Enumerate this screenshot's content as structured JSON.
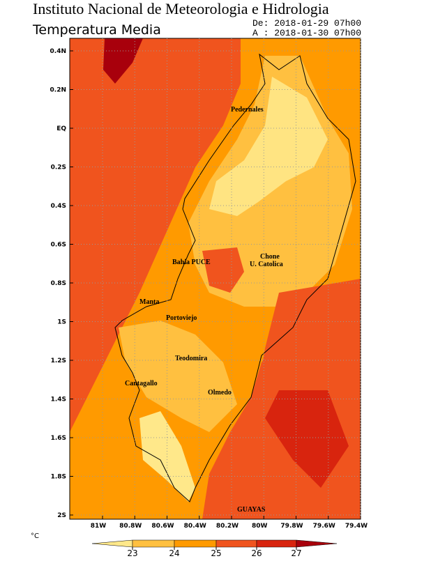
{
  "header": {
    "title": "Instituto Nacional de Meteorologia e Hidrologia",
    "subtitle": "Temperatura Media",
    "date_from": "De: 2018-01-29 07h00",
    "date_to": "A : 2018-01-30 07h00"
  },
  "map": {
    "lat_ticks": [
      {
        "value": 0.4,
        "label": "0.4N"
      },
      {
        "value": 0.2,
        "label": "0.2N"
      },
      {
        "value": 0,
        "label": "EQ"
      },
      {
        "value": -0.2,
        "label": "0.2S"
      },
      {
        "value": -0.4,
        "label": "0.4S"
      },
      {
        "value": -0.6,
        "label": "0.6S"
      },
      {
        "value": -0.8,
        "label": "0.8S"
      },
      {
        "value": -1,
        "label": "1S"
      },
      {
        "value": -1.2,
        "label": "1.2S"
      },
      {
        "value": -1.4,
        "label": "1.4S"
      },
      {
        "value": -1.6,
        "label": "1.6S"
      },
      {
        "value": -1.8,
        "label": "1.8S"
      },
      {
        "value": -2,
        "label": "2S"
      }
    ],
    "lon_ticks": [
      {
        "value": -81,
        "label": "81W"
      },
      {
        "value": -80.8,
        "label": "80.8W"
      },
      {
        "value": -80.6,
        "label": "80.6W"
      },
      {
        "value": -80.4,
        "label": "80.4W"
      },
      {
        "value": -80.2,
        "label": "80.2W"
      },
      {
        "value": -80,
        "label": "80W"
      },
      {
        "value": -79.8,
        "label": "79.8W"
      },
      {
        "value": -79.6,
        "label": "79.6W"
      },
      {
        "value": -79.4,
        "label": "79.4W"
      }
    ],
    "places": [
      "Pedernales",
      "Chone",
      "U. Catolica",
      "Bahia PUCE",
      "Manta",
      "Portoviejo",
      "Teodomira",
      "Cantagallo",
      "Olmedo",
      "GUAYAS"
    ]
  },
  "colorbar": {
    "unit": "°C",
    "levels": [
      23,
      24,
      25,
      26,
      27
    ],
    "colors": [
      "#ffe88a",
      "#ffc040",
      "#ff9a00",
      "#f0541e",
      "#d8240e",
      "#a8000c"
    ]
  }
}
